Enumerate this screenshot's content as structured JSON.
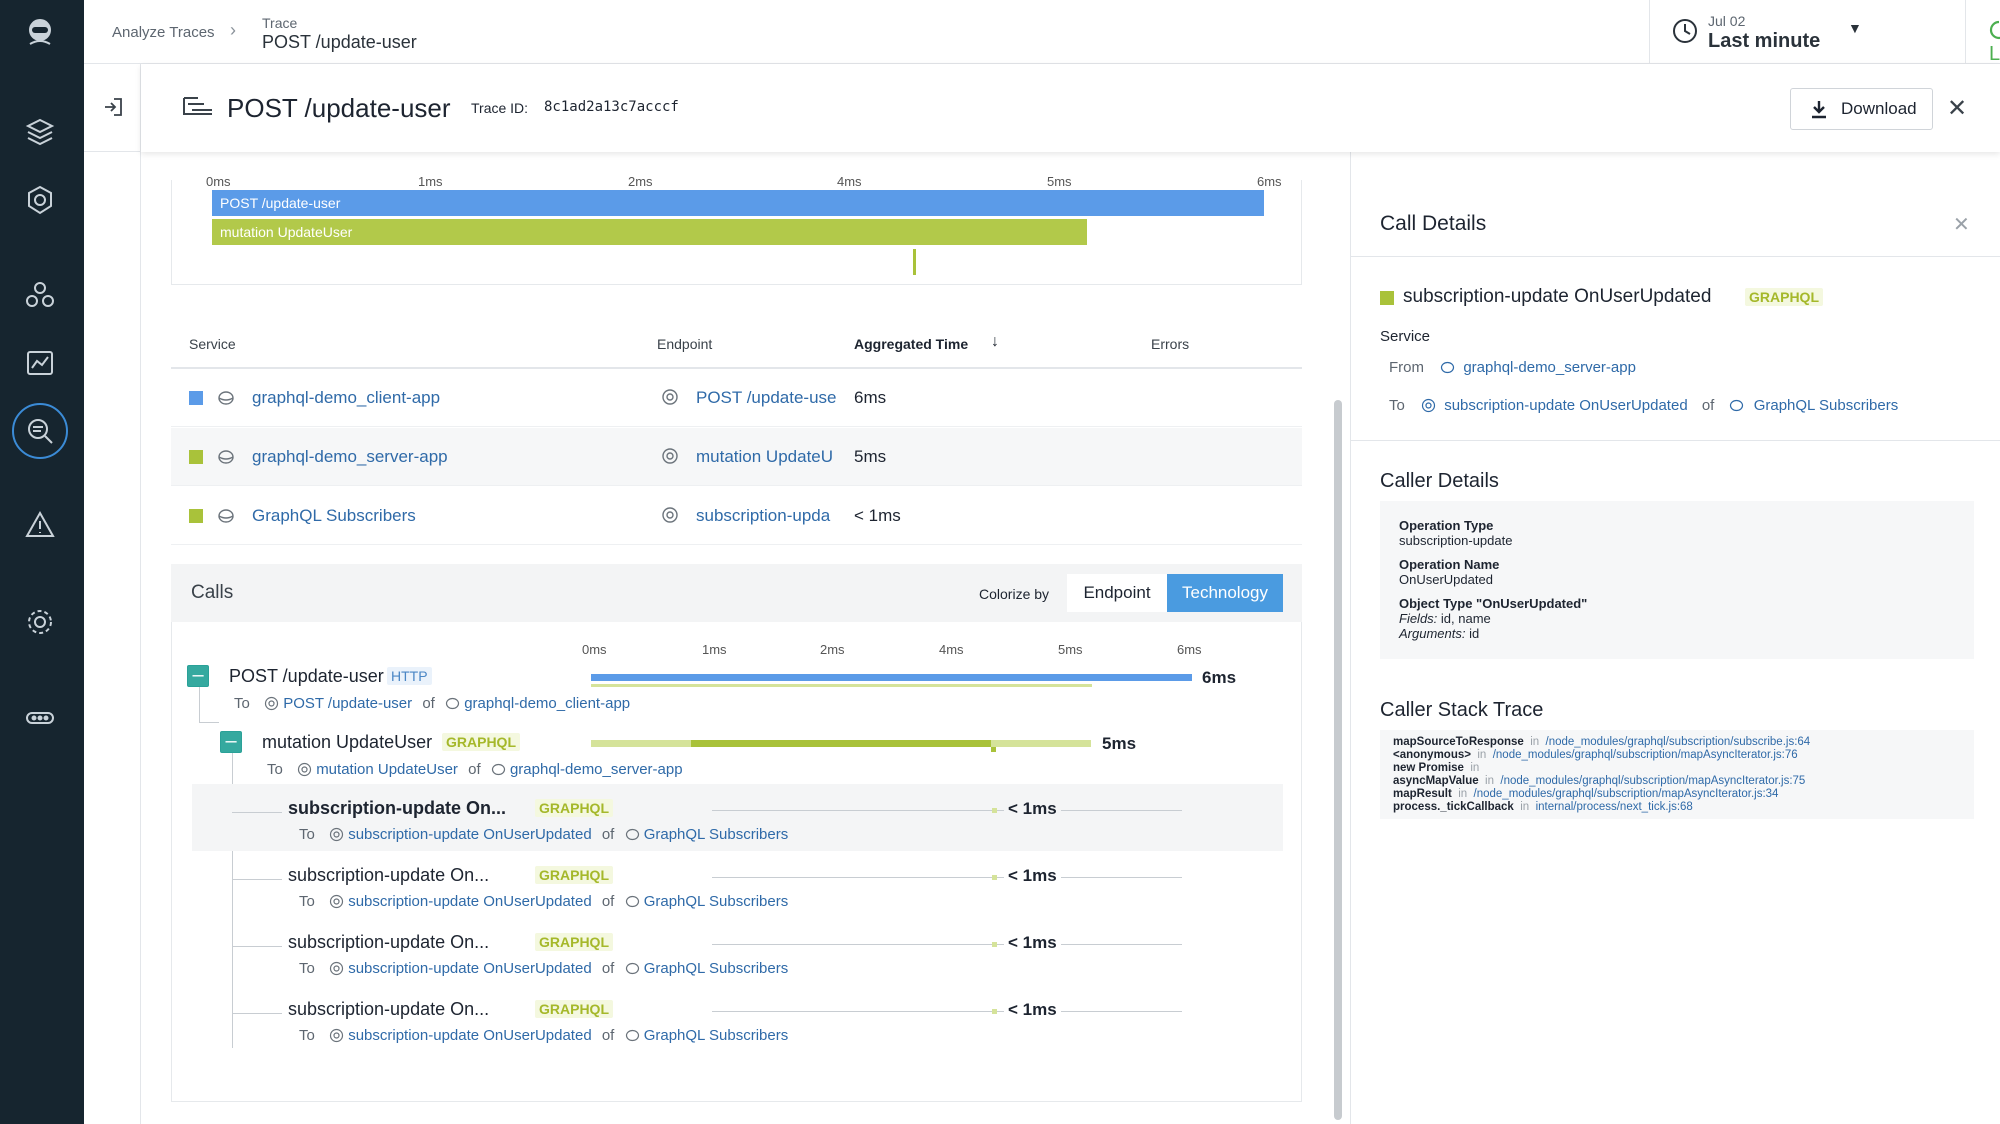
{
  "breadcrumb": {
    "root": "Analyze Traces",
    "section": "Trace",
    "current": "POST /update-user"
  },
  "time": {
    "date": "Jul 02",
    "range": "Last minute"
  },
  "live_label": "Live",
  "trace": {
    "title": "POST /update-user",
    "id_label": "Trace ID:",
    "id": "8c1ad2a13c7acccf",
    "download_label": "Download"
  },
  "overview": {
    "ticks": [
      "0ms",
      "1ms",
      "2ms",
      "4ms",
      "5ms",
      "6ms"
    ],
    "bars": [
      {
        "label": "POST /update-user",
        "color": "#5b9be8"
      },
      {
        "label": "mutation UpdateUser",
        "color": "#b2c94a"
      }
    ]
  },
  "services": {
    "headers": {
      "service": "Service",
      "endpoint": "Endpoint",
      "aggregated": "Aggregated Time",
      "errors": "Errors"
    },
    "rows": [
      {
        "service": "graphql-demo_client-app",
        "endpoint": "POST /update-use",
        "time": "6ms",
        "color": "#5b9be8"
      },
      {
        "service": "graphql-demo_server-app",
        "endpoint": "mutation UpdateU",
        "time": "5ms",
        "color": "#a9c23a"
      },
      {
        "service": "GraphQL Subscribers",
        "endpoint": "subscription-upda",
        "time": "< 1ms",
        "color": "#a9c23a"
      }
    ]
  },
  "calls": {
    "title": "Calls",
    "colorize_label": "Colorize by",
    "colorize_options": [
      "Endpoint",
      "Technology"
    ],
    "ticks": [
      "0ms",
      "1ms",
      "2ms",
      "4ms",
      "5ms",
      "6ms"
    ],
    "to": "To",
    "of": "of",
    "items": [
      {
        "title": "POST /update-user",
        "tag": "HTTP",
        "duration": "6ms",
        "endpoint": "POST /update-user",
        "service": "graphql-demo_client-app"
      },
      {
        "title": "mutation UpdateUser",
        "tag": "GRAPHQL",
        "duration": "5ms",
        "endpoint": "mutation UpdateUser",
        "service": "graphql-demo_server-app"
      },
      {
        "title": "subscription-update On...",
        "tag": "GRAPHQL",
        "duration": "< 1ms",
        "endpoint": "subscription-update OnUserUpdated",
        "service": "GraphQL Subscribers"
      },
      {
        "title": "subscription-update On...",
        "tag": "GRAPHQL",
        "duration": "< 1ms",
        "endpoint": "subscription-update OnUserUpdated",
        "service": "GraphQL Subscribers"
      },
      {
        "title": "subscription-update On...",
        "tag": "GRAPHQL",
        "duration": "< 1ms",
        "endpoint": "subscription-update OnUserUpdated",
        "service": "GraphQL Subscribers"
      },
      {
        "title": "subscription-update On...",
        "tag": "GRAPHQL",
        "duration": "< 1ms",
        "endpoint": "subscription-update OnUserUpdated",
        "service": "GraphQL Subscribers"
      }
    ]
  },
  "call_details": {
    "title": "Call Details",
    "name": "subscription-update OnUserUpdated",
    "tag": "GRAPHQL",
    "service_label": "Service",
    "from_label": "From",
    "from_service": "graphql-demo_server-app",
    "to_label": "To",
    "to_endpoint": "subscription-update OnUserUpdated",
    "of_label": "of",
    "to_service": "GraphQL Subscribers"
  },
  "caller_details": {
    "title": "Caller Details",
    "op_type_label": "Operation Type",
    "op_type": "subscription-update",
    "op_name_label": "Operation Name",
    "op_name": "OnUserUpdated",
    "obj_type_label": "Object Type \"OnUserUpdated\"",
    "fields_label": "Fields:",
    "fields": "id, name",
    "args_label": "Arguments:",
    "args": "id"
  },
  "stack": {
    "title": "Caller Stack Trace",
    "in": "in",
    "frames": [
      {
        "fn": "mapSourceToResponse",
        "path": "/node_modules/graphql/subscription/subscribe.js:64"
      },
      {
        "fn": "<anonymous>",
        "path": "/node_modules/graphql/subscription/mapAsyncIterator.js:76"
      },
      {
        "fn": "new Promise",
        "path": ""
      },
      {
        "fn": "asyncMapValue",
        "path": "/node_modules/graphql/subscription/mapAsyncIterator.js:75"
      },
      {
        "fn": "mapResult",
        "path": "/node_modules/graphql/subscription/mapAsyncIterator.js:34"
      },
      {
        "fn": "process._tickCallback",
        "path": "internal/process/next_tick.js:68"
      }
    ]
  },
  "colors": {
    "blue": "#5b9be8",
    "green": "#b2c94a",
    "nav": "#16252f",
    "link": "#2f6aa8"
  }
}
